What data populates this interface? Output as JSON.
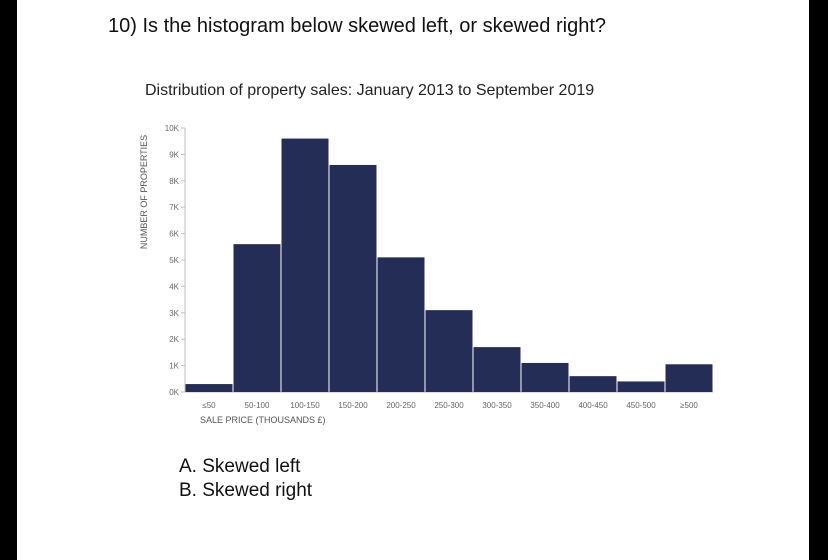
{
  "question": "10) Is the histogram below skewed left, or skewed right?",
  "options": [
    "A. Skewed left",
    "B. Skewed right"
  ],
  "colors": {
    "bar": "#232d55",
    "axis": "#bfbfbf",
    "tick_text": "#666666"
  },
  "chart_data": {
    "type": "bar",
    "title": "Distribution of property sales: January 2013 to September 2019",
    "xlabel": "SALE PRICE (THOUSANDS £)",
    "ylabel": "NUMBER OF PROPERTIES",
    "categories": [
      "≤50",
      "50-100",
      "100-150",
      "150-200",
      "200-250",
      "250-300",
      "300-350",
      "350-400",
      "400-450",
      "450-500",
      "≥500"
    ],
    "values": [
      300,
      5600,
      9600,
      8600,
      5100,
      3100,
      1700,
      1100,
      600,
      400,
      1050
    ],
    "yticks": [
      "0K",
      "1K",
      "2K",
      "3K",
      "4K",
      "5K",
      "6K",
      "7K",
      "8K",
      "9K",
      "10K"
    ],
    "ylim": [
      0,
      10000
    ],
    "grid": false
  }
}
